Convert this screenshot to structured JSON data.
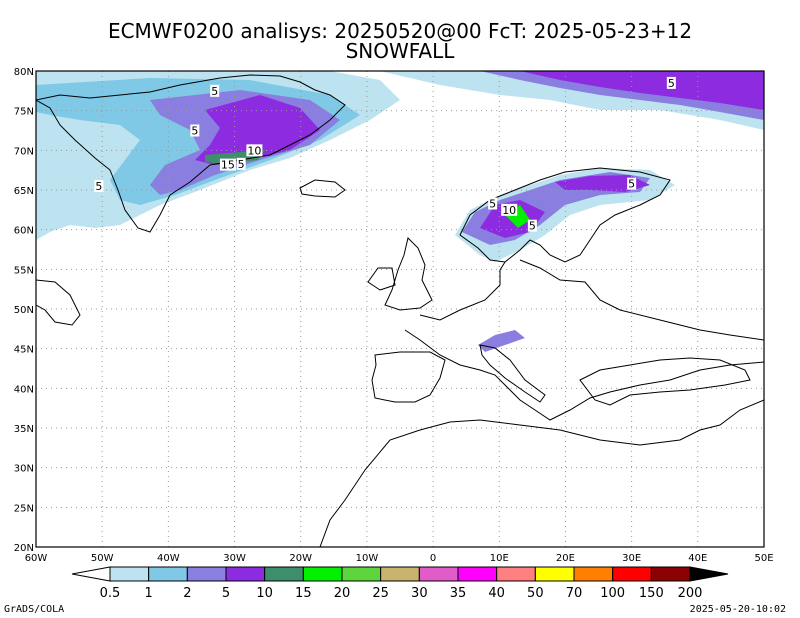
{
  "header": {
    "title_line1": "ECMWF0200 analisys: 20250520@00 FcT: 2025-05-23+12",
    "title_line2": "SNOWFALL"
  },
  "axes": {
    "lon_labels": [
      "60W",
      "50W",
      "40W",
      "30W",
      "20W",
      "10W",
      "0",
      "10E",
      "20E",
      "30E",
      "40E",
      "50E"
    ],
    "lat_labels": [
      "80N",
      "75N",
      "70N",
      "65N",
      "60N",
      "55N",
      "50N",
      "45N",
      "40N",
      "35N",
      "30N",
      "25N",
      "20N"
    ],
    "lon_range": [
      -60,
      50
    ],
    "lat_range": [
      20,
      80
    ]
  },
  "colorbar": {
    "levels": [
      "0.5",
      "1",
      "2",
      "5",
      "10",
      "15",
      "20",
      "25",
      "30",
      "35",
      "40",
      "50",
      "70",
      "100",
      "150",
      "200"
    ],
    "colors": [
      "#ffffff",
      "#bde3f0",
      "#7fc8e6",
      "#8a7fe0",
      "#8c2be0",
      "#3c8f6a",
      "#00f000",
      "#5cd63c",
      "#c8b46e",
      "#e05cc8",
      "#ff00ff",
      "#ff8080",
      "#ffff00",
      "#ff8000",
      "#ff0000",
      "#8b0000",
      "#000000"
    ]
  },
  "contour_labels": [
    {
      "text": "5",
      "lon": -33,
      "lat": 77.5
    },
    {
      "text": "5",
      "lon": -36,
      "lat": 72.5
    },
    {
      "text": "10",
      "lon": -27,
      "lat": 70
    },
    {
      "text": "15",
      "lon": -31,
      "lat": 68.2
    },
    {
      "text": "5",
      "lon": -29,
      "lat": 68.3
    },
    {
      "text": "5",
      "lon": -50.5,
      "lat": 65.5
    },
    {
      "text": "5",
      "lon": 36,
      "lat": 78.5
    },
    {
      "text": "5",
      "lon": 9,
      "lat": 63.3
    },
    {
      "text": "10",
      "lon": 11.5,
      "lat": 62.5
    },
    {
      "text": "5",
      "lon": 15,
      "lat": 60.5
    },
    {
      "text": "5",
      "lon": 30,
      "lat": 65.8
    }
  ],
  "footer": {
    "left": "GrADS/COLA",
    "right": "2025-05-20-10:02"
  }
}
